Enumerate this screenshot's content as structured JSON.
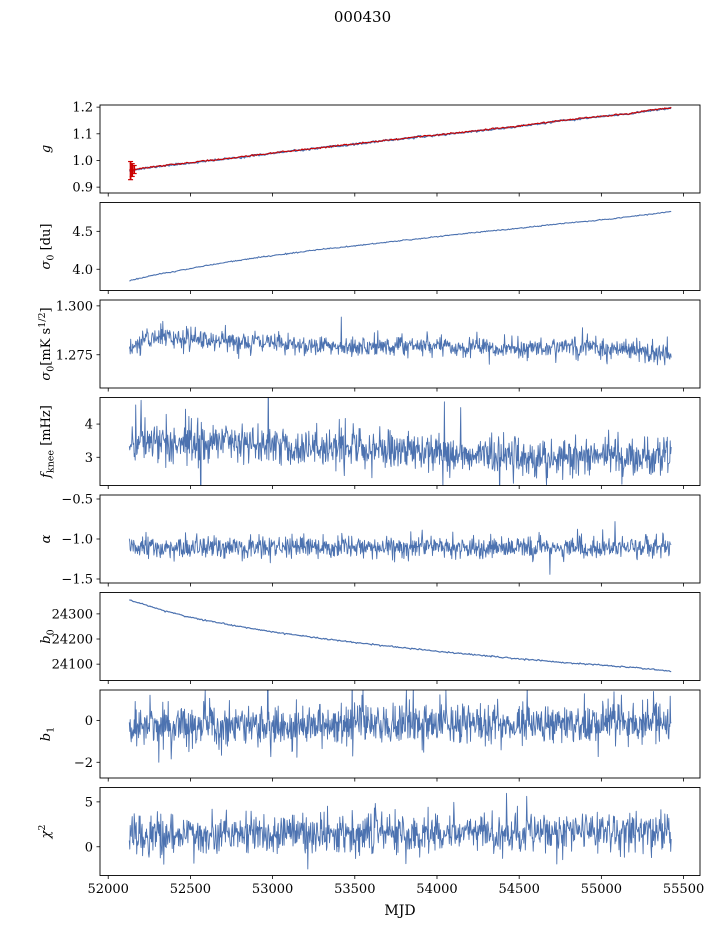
{
  "chart_data": {
    "type": "line",
    "title": "000430",
    "xlabel": "MJD",
    "xlim": [
      51950,
      55600
    ],
    "x_ticks": [
      52000,
      52500,
      53000,
      53500,
      54000,
      54500,
      55000,
      55500
    ],
    "x_tick_labels": [
      "52000",
      "52500",
      "53000",
      "53500",
      "54000",
      "54500",
      "55000",
      "55500"
    ],
    "x_data_range": [
      52128,
      55425
    ],
    "line_color": "#4c72b0",
    "overlay_color": "#cc0000",
    "panels": [
      {
        "name": "g",
        "label_parts": [
          {
            "t": "g",
            "it": true
          }
        ],
        "ylim": [
          0.878,
          1.208
        ],
        "y_ticks": [
          0.9,
          1.0,
          1.1,
          1.2
        ],
        "y_tick_labels": [
          "0.9",
          "1.0",
          "1.1",
          "1.2"
        ],
        "errorbar_color": "#cc0000",
        "errorbars": [
          {
            "x": 52136,
            "y": 0.962,
            "yerr": 0.034
          },
          {
            "x": 52146,
            "y": 0.964,
            "yerr": 0.024
          },
          {
            "x": 52158,
            "y": 0.966,
            "yerr": 0.015
          }
        ],
        "series": [
          {
            "name": "g-gain",
            "color": "#4c72b0",
            "width": 1.6,
            "seed": 11,
            "n": 500,
            "noise": 0.0016,
            "trend": [
              [
                52128,
                0.962
              ],
              [
                52200,
                0.969
              ],
              [
                52350,
                0.981
              ],
              [
                52500,
                0.991
              ],
              [
                52750,
                1.008
              ],
              [
                53000,
                1.027
              ],
              [
                53250,
                1.044
              ],
              [
                53500,
                1.061
              ],
              [
                53750,
                1.079
              ],
              [
                54000,
                1.095
              ],
              [
                54250,
                1.111
              ],
              [
                54500,
                1.128
              ],
              [
                54750,
                1.148
              ],
              [
                55000,
                1.165
              ],
              [
                55150,
                1.173
              ],
              [
                55300,
                1.188
              ],
              [
                55425,
                1.197
              ]
            ]
          },
          {
            "name": "g-overlay",
            "color": "#cc0000",
            "width": 1.1,
            "seed": 12,
            "n": 500,
            "noise": 0.0014,
            "offset": 0.0012,
            "trend": [
              [
                52128,
                0.962
              ],
              [
                52200,
                0.969
              ],
              [
                52350,
                0.981
              ],
              [
                52500,
                0.991
              ],
              [
                52750,
                1.008
              ],
              [
                53000,
                1.027
              ],
              [
                53250,
                1.044
              ],
              [
                53500,
                1.061
              ],
              [
                53750,
                1.079
              ],
              [
                54000,
                1.095
              ],
              [
                54250,
                1.111
              ],
              [
                54500,
                1.128
              ],
              [
                54750,
                1.148
              ],
              [
                55000,
                1.165
              ],
              [
                55150,
                1.173
              ],
              [
                55300,
                1.188
              ],
              [
                55425,
                1.197
              ]
            ]
          }
        ]
      },
      {
        "name": "sigma0-du",
        "label_parts": [
          {
            "t": "σ",
            "it": true
          },
          {
            "t": "0",
            "sub": true
          },
          {
            "t": " [du]"
          }
        ],
        "ylim": [
          3.72,
          4.88
        ],
        "y_ticks": [
          4.0,
          4.5
        ],
        "y_tick_labels": [
          "4.0",
          "4.5"
        ],
        "series": [
          {
            "name": "sigma0-du",
            "color": "#4c72b0",
            "width": 1.1,
            "seed": 21,
            "n": 500,
            "noise": 0.004,
            "trend": [
              [
                52128,
                3.85
              ],
              [
                52250,
                3.91
              ],
              [
                52400,
                3.97
              ],
              [
                52600,
                4.05
              ],
              [
                52800,
                4.12
              ],
              [
                53000,
                4.18
              ],
              [
                53250,
                4.25
              ],
              [
                53500,
                4.31
              ],
              [
                53750,
                4.37
              ],
              [
                54000,
                4.43
              ],
              [
                54250,
                4.49
              ],
              [
                54500,
                4.54
              ],
              [
                54750,
                4.6
              ],
              [
                55000,
                4.65
              ],
              [
                55200,
                4.7
              ],
              [
                55425,
                4.76
              ]
            ]
          }
        ]
      },
      {
        "name": "sigma0-mks",
        "label_parts": [
          {
            "t": "σ",
            "it": true
          },
          {
            "t": "0",
            "sub": true
          },
          {
            "t": "[mK s"
          },
          {
            "t": "1/2",
            "sup": true
          },
          {
            "t": "]"
          }
        ],
        "ylim": [
          1.258,
          1.303
        ],
        "y_ticks": [
          1.275,
          1.3
        ],
        "y_tick_labels": [
          "1.275",
          "1.300"
        ],
        "series": [
          {
            "name": "sigma0-mks",
            "color": "#4c72b0",
            "width": 0.9,
            "seed": 31,
            "n": 1100,
            "noise": 0.0026,
            "spike_prob": 0.02,
            "spike_scale": 1.2,
            "trend": [
              [
                52128,
                1.277
              ],
              [
                52220,
                1.283
              ],
              [
                52300,
                1.285
              ],
              [
                52450,
                1.283
              ],
              [
                52700,
                1.282
              ],
              [
                53000,
                1.281
              ],
              [
                53300,
                1.28
              ],
              [
                53600,
                1.279
              ],
              [
                54000,
                1.28
              ],
              [
                54400,
                1.278
              ],
              [
                54800,
                1.279
              ],
              [
                55100,
                1.278
              ],
              [
                55300,
                1.276
              ],
              [
                55425,
                1.274
              ]
            ]
          }
        ]
      },
      {
        "name": "fknee",
        "label_parts": [
          {
            "t": "f",
            "it": true
          },
          {
            "t": "knee",
            "sub": true
          },
          {
            "t": " [mHz]"
          }
        ],
        "ylim": [
          2.15,
          4.8
        ],
        "y_ticks": [
          3,
          4
        ],
        "y_tick_labels": [
          "3",
          "4"
        ],
        "series": [
          {
            "name": "fknee",
            "color": "#4c72b0",
            "width": 0.9,
            "seed": 41,
            "n": 1100,
            "noise": 0.3,
            "spike_prob": 0.03,
            "spike_scale": 1.4,
            "trend": [
              [
                52128,
                3.5
              ],
              [
                52400,
                3.45
              ],
              [
                52700,
                3.5
              ],
              [
                53000,
                3.35
              ],
              [
                53400,
                3.3
              ],
              [
                53800,
                3.2
              ],
              [
                54200,
                3.1
              ],
              [
                54600,
                3.0
              ],
              [
                55000,
                3.05
              ],
              [
                55425,
                3.0
              ]
            ]
          }
        ]
      },
      {
        "name": "alpha",
        "label_parts": [
          {
            "t": "α",
            "it": true
          }
        ],
        "ylim": [
          -1.55,
          -0.45
        ],
        "y_ticks": [
          -0.5,
          -1.0,
          -1.5
        ],
        "y_tick_labels": [
          "−0.5",
          "−1.0",
          "−1.5"
        ],
        "series": [
          {
            "name": "alpha",
            "color": "#4c72b0",
            "width": 0.9,
            "seed": 51,
            "n": 1100,
            "noise": 0.068,
            "spike_prob": 0.025,
            "spike_scale": 1.2,
            "trend": [
              [
                52128,
                -1.115
              ],
              [
                53500,
                -1.11
              ],
              [
                55425,
                -1.1
              ]
            ]
          }
        ]
      },
      {
        "name": "b0",
        "label_parts": [
          {
            "t": "b",
            "it": true
          },
          {
            "t": "0",
            "sub": true
          }
        ],
        "ylim": [
          24035,
          24385
        ],
        "y_ticks": [
          24100,
          24200,
          24300
        ],
        "y_tick_labels": [
          "24100",
          "24200",
          "24300"
        ],
        "series": [
          {
            "name": "b0",
            "color": "#4c72b0",
            "width": 1.2,
            "seed": 61,
            "n": 500,
            "noise": 1.4,
            "trend": [
              [
                52128,
                24356
              ],
              [
                52300,
                24320
              ],
              [
                52500,
                24286
              ],
              [
                52750,
                24255
              ],
              [
                53000,
                24229
              ],
              [
                53250,
                24206
              ],
              [
                53500,
                24186
              ],
              [
                53750,
                24168
              ],
              [
                54000,
                24151
              ],
              [
                54250,
                24136
              ],
              [
                54500,
                24121
              ],
              [
                54750,
                24108
              ],
              [
                55000,
                24096
              ],
              [
                55200,
                24086
              ],
              [
                55425,
                24072
              ]
            ]
          }
        ]
      },
      {
        "name": "b1",
        "label_parts": [
          {
            "t": "b",
            "it": true
          },
          {
            "t": "1",
            "sub": true
          }
        ],
        "ylim": [
          -2.75,
          1.45
        ],
        "y_ticks": [
          0,
          -2
        ],
        "y_tick_labels": [
          "0",
          "−2"
        ],
        "series": [
          {
            "name": "b1",
            "color": "#4c72b0",
            "width": 0.9,
            "seed": 71,
            "n": 1100,
            "noise": 0.52,
            "spike_prob": 0.03,
            "spike_scale": 1.1,
            "trend": [
              [
                52128,
                -0.3
              ],
              [
                53000,
                -0.2
              ],
              [
                54000,
                -0.15
              ],
              [
                55425,
                -0.1
              ]
            ]
          }
        ]
      },
      {
        "name": "chi2",
        "label_parts": [
          {
            "t": "χ",
            "it": true
          },
          {
            "t": "2",
            "sup": true
          }
        ],
        "ylim": [
          -3.2,
          6.6
        ],
        "y_ticks": [
          0,
          5
        ],
        "y_tick_labels": [
          "0",
          "5"
        ],
        "series": [
          {
            "name": "chi2",
            "color": "#4c72b0",
            "width": 0.9,
            "seed": 81,
            "n": 1100,
            "noise": 1.1,
            "spike_prob": 0.02,
            "spike_scale": 1.0,
            "trend": [
              [
                52128,
                1.2
              ],
              [
                53000,
                1.6
              ],
              [
                54000,
                1.5
              ],
              [
                55425,
                1.8
              ]
            ]
          }
        ]
      }
    ]
  }
}
